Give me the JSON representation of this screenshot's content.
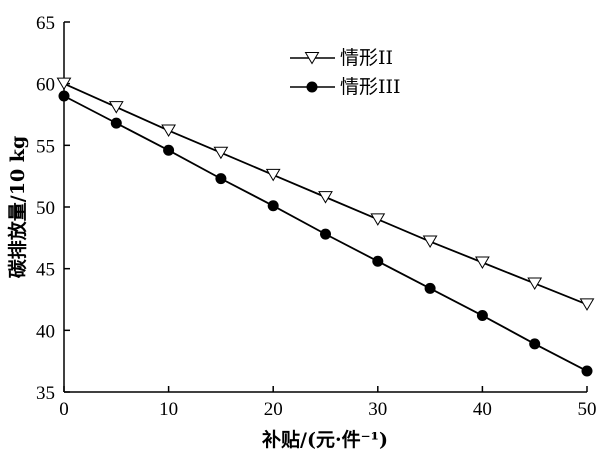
{
  "chart_data": {
    "type": "line",
    "title": "",
    "xlabel": "补贴/(元·件⁻¹)",
    "ylabel": "碳排放量/10 kg",
    "x": [
      0,
      5,
      10,
      15,
      20,
      25,
      30,
      35,
      40,
      45,
      50
    ],
    "xlim": [
      0,
      50
    ],
    "ylim": [
      35,
      65
    ],
    "x_ticks": [
      "0",
      "10",
      "20",
      "30",
      "40",
      "50"
    ],
    "y_ticks": [
      "35",
      "40",
      "45",
      "50",
      "55",
      "60",
      "65"
    ],
    "grid": false,
    "legend_position": "top-center",
    "series": [
      {
        "name": "情形II",
        "marker": "open-down-triangle",
        "color": "#000000",
        "values": [
          60.0,
          58.1,
          56.2,
          54.4,
          52.6,
          50.8,
          49.0,
          47.2,
          45.5,
          43.8,
          42.1
        ]
      },
      {
        "name": "情形III",
        "marker": "filled-circle",
        "color": "#000000",
        "values": [
          59.0,
          56.8,
          54.6,
          52.3,
          50.1,
          47.8,
          45.6,
          43.4,
          41.2,
          38.9,
          36.7
        ]
      }
    ]
  }
}
